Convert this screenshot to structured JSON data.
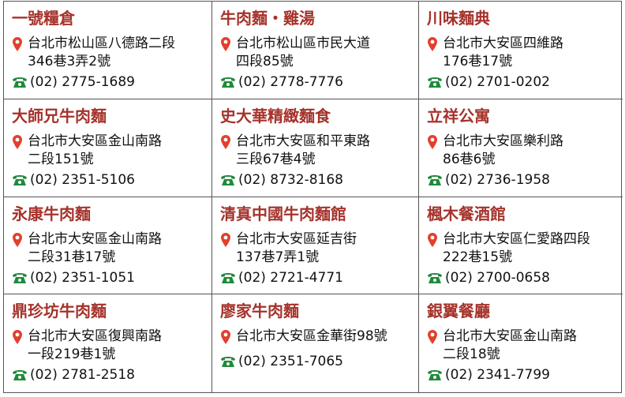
{
  "restaurants": [
    {
      "name": "一號糧倉",
      "address": [
        "台北市松山區八德路二段",
        "346巷3弄2號"
      ],
      "phone": "(02) 2775-1689"
    },
    {
      "name": "牛肉麵・雞湯",
      "address": [
        "台北市松山區市民大道",
        "四段85號"
      ],
      "phone": "(02) 2778-7776"
    },
    {
      "name": "川味麵典",
      "address": [
        "台北市大安區四維路",
        "176巷17號"
      ],
      "phone": "(02) 2701-0202"
    },
    {
      "name": "大師兄牛肉麵",
      "address": [
        "台北市大安區金山南路",
        "二段151號"
      ],
      "phone": "(02) 2351-5106"
    },
    {
      "name": "史大華精緻麵食",
      "address": [
        "台北市大安區和平東路",
        "三段67巷4號"
      ],
      "phone": "(02) 8732-8168"
    },
    {
      "name": "立祥公寓",
      "address": [
        "台北市大安區樂利路",
        "86巷6號"
      ],
      "phone": "(02) 2736-1958"
    },
    {
      "name": "永康牛肉麵",
      "address": [
        "台北市大安區金山南路",
        "二段31巷17號"
      ],
      "phone": "(02) 2351-1051"
    },
    {
      "name": "清真中國牛肉麵館",
      "address": [
        "台北市大安區延吉街",
        "137巷7弄1號"
      ],
      "phone": "(02) 2721-4771"
    },
    {
      "name": "楓木餐酒館",
      "address": [
        "台北市大安區仁愛路四段",
        "222巷15號"
      ],
      "phone": "(02) 2700-0658"
    },
    {
      "name": "鼎珍坊牛肉麵",
      "address": [
        "台北市大安區復興南路",
        "一段219巷1號"
      ],
      "phone": "(02) 2781-2518"
    },
    {
      "name": "廖家牛肉麵",
      "address": [
        "台北市大安區金華街98號"
      ],
      "phone": "(02) 2351-7065"
    },
    {
      "name": "銀翼餐廳",
      "address": [
        "台北市大安區金山南路",
        "二段18號"
      ],
      "phone": "(02) 2341-7799"
    }
  ]
}
